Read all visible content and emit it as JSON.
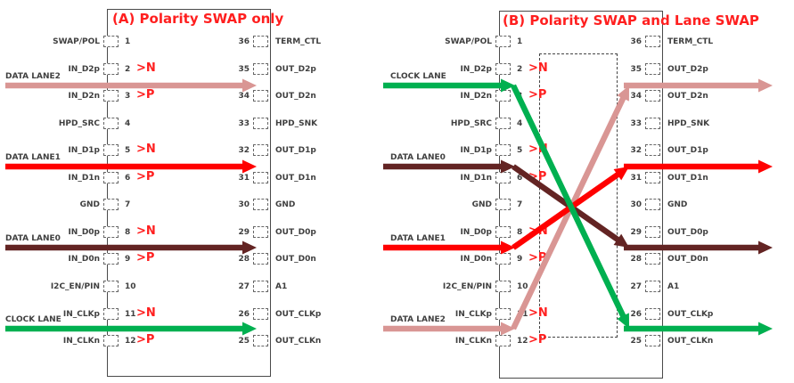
{
  "colors": {
    "data_lane2": "#D99694",
    "data_lane1": "#FF0000",
    "data_lane0": "#632423",
    "clock_lane": "#00B050",
    "title_red": "#FF1F1F",
    "polarity_red": "#FF1F1F",
    "pin_text": "#3F3F3F",
    "lane_label_text": "#404040"
  },
  "diagrams": [
    {
      "id": "A",
      "title": "(A) Polarity SWAP only",
      "left_pins": [
        {
          "num": "1",
          "label": "SWAP/POL"
        },
        {
          "num": "2",
          "label": "IN_D2p"
        },
        {
          "num": "3",
          "label": "IN_D2n"
        },
        {
          "num": "4",
          "label": "HPD_SRC"
        },
        {
          "num": "5",
          "label": "IN_D1p"
        },
        {
          "num": "6",
          "label": "IN_D1n"
        },
        {
          "num": "7",
          "label": "GND"
        },
        {
          "num": "8",
          "label": "IN_D0p"
        },
        {
          "num": "9",
          "label": "IN_D0n"
        },
        {
          "num": "10",
          "label": "I2C_EN/PIN"
        },
        {
          "num": "11",
          "label": "IN_CLKp"
        },
        {
          "num": "12",
          "label": "IN_CLKn"
        }
      ],
      "right_pins": [
        {
          "num": "36",
          "label": "TERM_CTL"
        },
        {
          "num": "35",
          "label": "OUT_D2p"
        },
        {
          "num": "34",
          "label": "OUT_D2n"
        },
        {
          "num": "33",
          "label": "HPD_SNK"
        },
        {
          "num": "32",
          "label": "OUT_D1p"
        },
        {
          "num": "31",
          "label": "OUT_D1n"
        },
        {
          "num": "30",
          "label": "GND"
        },
        {
          "num": "29",
          "label": "OUT_D0p"
        },
        {
          "num": "28",
          "label": "OUT_D0n"
        },
        {
          "num": "27",
          "label": "A1"
        },
        {
          "num": "26",
          "label": "OUT_CLKp"
        },
        {
          "num": "25",
          "label": "OUT_CLKn"
        }
      ],
      "polarity_labels": [
        {
          "pin": "2",
          "text": ">N"
        },
        {
          "pin": "3",
          "text": ">P"
        },
        {
          "pin": "5",
          "text": ">N"
        },
        {
          "pin": "6",
          "text": ">P"
        },
        {
          "pin": "8",
          "text": ">N"
        },
        {
          "pin": "9",
          "text": ">P"
        },
        {
          "pin": "11",
          "text": ">N"
        },
        {
          "pin": "12",
          "text": ">P"
        }
      ],
      "lanes": [
        {
          "name": "DATA LANE2",
          "color_key": "data_lane2",
          "entry_gap": 0,
          "exit_gap": 0
        },
        {
          "name": "DATA LANE1",
          "color_key": "data_lane1",
          "entry_gap": 1,
          "exit_gap": 1
        },
        {
          "name": "DATA LANE0",
          "color_key": "data_lane0",
          "entry_gap": 2,
          "exit_gap": 2
        },
        {
          "name": "CLOCK LANE",
          "color_key": "clock_lane",
          "entry_gap": 3,
          "exit_gap": 3
        }
      ],
      "has_swap_region": false
    },
    {
      "id": "B",
      "title": "(B) Polarity SWAP and Lane SWAP",
      "left_pins": [
        {
          "num": "1",
          "label": "SWAP/POL"
        },
        {
          "num": "2",
          "label": "IN_D2p"
        },
        {
          "num": "3",
          "label": "IN_D2n"
        },
        {
          "num": "4",
          "label": "HPD_SRC"
        },
        {
          "num": "5",
          "label": "IN_D1p"
        },
        {
          "num": "6",
          "label": "IN_D1n"
        },
        {
          "num": "7",
          "label": "GND"
        },
        {
          "num": "8",
          "label": "IN_D0p"
        },
        {
          "num": "9",
          "label": "IN_D0n"
        },
        {
          "num": "10",
          "label": "I2C_EN/PIN"
        },
        {
          "num": "11",
          "label": "IN_CLKp"
        },
        {
          "num": "12",
          "label": "IN_CLKn"
        }
      ],
      "right_pins": [
        {
          "num": "36",
          "label": "TERM_CTL"
        },
        {
          "num": "35",
          "label": "OUT_D2p"
        },
        {
          "num": "34",
          "label": "OUT_D2n"
        },
        {
          "num": "33",
          "label": "HPD_SNK"
        },
        {
          "num": "32",
          "label": "OUT_D1p"
        },
        {
          "num": "31",
          "label": "OUT_D1n"
        },
        {
          "num": "30",
          "label": "GND"
        },
        {
          "num": "29",
          "label": "OUT_D0p"
        },
        {
          "num": "28",
          "label": "OUT_D0n"
        },
        {
          "num": "27",
          "label": "A1"
        },
        {
          "num": "26",
          "label": "OUT_CLKp"
        },
        {
          "num": "25",
          "label": "OUT_CLKn"
        }
      ],
      "polarity_labels": [
        {
          "pin": "2",
          "text": ">N"
        },
        {
          "pin": "3",
          "text": ">P"
        },
        {
          "pin": "5",
          "text": ">N"
        },
        {
          "pin": "6",
          "text": ">P"
        },
        {
          "pin": "8",
          "text": ">N"
        },
        {
          "pin": "9",
          "text": ">P"
        },
        {
          "pin": "11",
          "text": ">N"
        },
        {
          "pin": "12",
          "text": ">P"
        }
      ],
      "lanes": [
        {
          "name": "DATA LANE2",
          "color_key": "data_lane2",
          "entry_gap": 3,
          "exit_gap": 0
        },
        {
          "name": "DATA LANE0",
          "color_key": "data_lane0",
          "entry_gap": 1,
          "exit_gap": 2
        },
        {
          "name": "DATA LANE1",
          "color_key": "data_lane1",
          "entry_gap": 2,
          "exit_gap": 1
        },
        {
          "name": "CLOCK LANE",
          "color_key": "clock_lane",
          "entry_gap": 0,
          "exit_gap": 3
        }
      ],
      "has_swap_region": true
    }
  ]
}
